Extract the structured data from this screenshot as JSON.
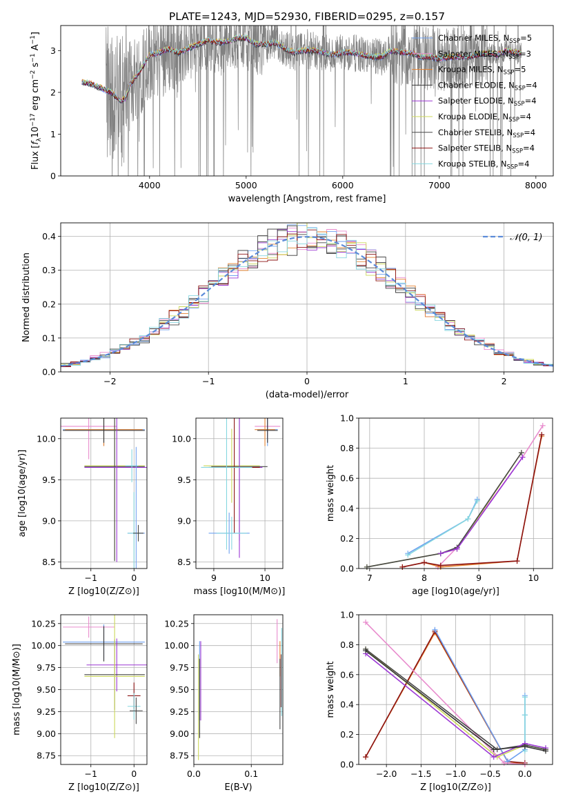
{
  "figure": {
    "title": "PLATE=1243, MJD=52930, FIBERID=0295, z=0.157"
  },
  "colors": {
    "series": [
      "#6fa1f0",
      "#e88bcd",
      "#e3812f",
      "#333333",
      "#9b37d4",
      "#ccd85a",
      "#464646",
      "#8b1212",
      "#85d6df"
    ],
    "data_spectrum": "#808080",
    "gaussian": "#5b8bd9",
    "grid": "#b0b0b0"
  },
  "chart_data": [
    {
      "id": "spectrum",
      "type": "line",
      "xlabel": "wavelength [Angstrom, rest frame]",
      "ylabel": "Flux [f_λ10^-17 erg cm^-2 s^-1 A^-1]",
      "xlim": [
        3080,
        8180
      ],
      "ylim": [
        0,
        3.6
      ],
      "xticks": [
        4000,
        5000,
        6000,
        7000,
        8000
      ],
      "yticks": [
        0,
        1,
        2,
        3
      ],
      "grid": false,
      "legend_position": "top-right",
      "legend": [
        "Chabrier MILES, N_SSP=5",
        "Salpeter MILES, N_SSP=3",
        "Kroupa MILES, N_SSP=5",
        "Chabrier ELODIE, N_SSP=4",
        "Salpeter ELODIE, N_SSP=4",
        "Kroupa ELODIE, N_SSP=4",
        "Chabrier STELIB, N_SSP=4",
        "Salpeter STELIB, N_SSP=4",
        "Kroupa STELIB, N_SSP=4"
      ],
      "continuum": {
        "x": [
          3300,
          3400,
          3500,
          3600,
          3700,
          3750,
          3800,
          3900,
          4000,
          4100,
          4200,
          4300,
          4400,
          4500,
          4600,
          4700,
          4800,
          4900,
          5000,
          5100,
          5200,
          5300,
          5400,
          5500,
          5600,
          5700,
          5800,
          5900,
          6000,
          6100,
          6200,
          6300,
          6400,
          6500,
          6600,
          6700,
          6800,
          6900,
          7000,
          7100,
          7200,
          7300,
          7400,
          7500,
          7600,
          7700,
          7800
        ],
        "y": [
          2.25,
          2.2,
          2.1,
          2.0,
          1.8,
          1.85,
          2.2,
          2.5,
          2.9,
          2.95,
          3.05,
          2.95,
          3.05,
          3.15,
          3.25,
          3.2,
          3.2,
          3.3,
          3.3,
          3.15,
          3.15,
          3.2,
          3.05,
          2.95,
          3.0,
          3.0,
          2.95,
          2.9,
          2.95,
          2.95,
          2.9,
          2.85,
          2.85,
          3.0,
          2.95,
          2.95,
          2.85,
          2.85,
          2.8,
          2.85,
          2.85,
          2.85,
          2.9,
          2.95,
          2.9,
          3.0,
          2.95
        ]
      },
      "data_xrange": [
        3300,
        7850
      ]
    },
    {
      "id": "residuals",
      "type": "bar",
      "xlabel": "(data-model)/error",
      "ylabel": "Normed distribution",
      "xlim": [
        -2.5,
        2.5
      ],
      "ylim": [
        0,
        0.44
      ],
      "xticks": [
        -2,
        -1,
        0,
        1,
        2
      ],
      "yticks": [
        0.0,
        0.1,
        0.2,
        0.3,
        0.4
      ],
      "grid": true,
      "legend": [
        "𝒩(0, 1)"
      ],
      "legend_position": "top-right",
      "bin_width": 0.1
    },
    {
      "id": "age-vs-Z",
      "type": "scatter",
      "xlabel": "Z [log10(Z/Z⊙)]",
      "ylabel": "age  [log10(age/yr)]",
      "xlim": [
        -1.7,
        0.3
      ],
      "ylim": [
        8.42,
        10.25
      ],
      "xticks": [
        -1,
        0
      ],
      "yticks": [
        8.5,
        9.0,
        9.5,
        10.0
      ],
      "grid": true,
      "points": [
        {
          "x": -1.05,
          "y": 10.15,
          "ex": 0.65,
          "ey": 0.4,
          "c": 1
        },
        {
          "x": -0.7,
          "y": 10.11,
          "ex": 0.95,
          "ey": 0.2,
          "c": 0
        },
        {
          "x": -0.7,
          "y": 10.11,
          "ex": 0.9,
          "ey": 0.2,
          "c": 2
        },
        {
          "x": -0.7,
          "y": 10.1,
          "ex": 0.95,
          "ey": 0.15,
          "c": 3
        },
        {
          "x": -0.45,
          "y": 9.67,
          "ex": 0.7,
          "ey": 1.15,
          "c": 5
        },
        {
          "x": -0.45,
          "y": 9.66,
          "ex": 0.7,
          "ey": 1.15,
          "c": 6
        },
        {
          "x": -0.4,
          "y": 9.65,
          "ex": 0.75,
          "ey": 1.15,
          "c": 4
        },
        {
          "x": -0.05,
          "y": 9.67,
          "ex": 0.15,
          "ey": 0.2,
          "c": 8
        },
        {
          "x": 0.05,
          "y": 8.85,
          "ex": 0.2,
          "ey": 1.05,
          "c": 0
        },
        {
          "x": 0.0,
          "y": 8.85,
          "ex": 0.15,
          "ey": 0.5,
          "c": 8
        },
        {
          "x": 0.1,
          "y": 8.85,
          "ex": 0.12,
          "ey": 0.1,
          "c": 6
        }
      ]
    },
    {
      "id": "age-vs-mass",
      "type": "scatter",
      "xlabel": "mass [log10(M/M⊙)]",
      "ylabel": "",
      "xlim": [
        8.65,
        10.35
      ],
      "ylim": [
        8.42,
        10.25
      ],
      "xticks": [
        9,
        10
      ],
      "yticks": [
        8.5,
        9.0,
        9.5,
        10.0
      ],
      "grid": true,
      "points": [
        {
          "x": 10.05,
          "y": 10.15,
          "ex": 0.25,
          "ey": 0.15,
          "c": 1
        },
        {
          "x": 10.05,
          "y": 10.11,
          "ex": 0.2,
          "ey": 0.2,
          "c": 0
        },
        {
          "x": 10.0,
          "y": 10.11,
          "ex": 0.2,
          "ey": 0.2,
          "c": 2
        },
        {
          "x": 10.05,
          "y": 10.1,
          "ex": 0.2,
          "ey": 0.15,
          "c": 3
        },
        {
          "x": 9.35,
          "y": 9.67,
          "ex": 0.55,
          "ey": 0.45,
          "c": 5
        },
        {
          "x": 9.5,
          "y": 9.66,
          "ex": 0.55,
          "ey": 0.9,
          "c": 6
        },
        {
          "x": 9.5,
          "y": 9.65,
          "ex": 0.45,
          "ey": 1.1,
          "c": 4
        },
        {
          "x": 9.4,
          "y": 9.65,
          "ex": 0.5,
          "ey": 0.8,
          "c": 7
        },
        {
          "x": 9.25,
          "y": 9.65,
          "ex": 0.5,
          "ey": 1.0,
          "c": 8
        },
        {
          "x": 9.3,
          "y": 8.85,
          "ex": 0.4,
          "ey": 0.25,
          "c": 0
        },
        {
          "x": 9.35,
          "y": 8.85,
          "ex": 0.3,
          "ey": 0.2,
          "c": 8
        }
      ]
    },
    {
      "id": "weight-vs-age",
      "type": "line",
      "xlabel": "age  [log10(age/yr)]",
      "ylabel": "mass weight",
      "xlim": [
        6.8,
        10.35
      ],
      "ylim": [
        0,
        1.0
      ],
      "xticks": [
        7,
        8,
        9,
        10
      ],
      "yticks": [
        0.0,
        0.2,
        0.4,
        0.6,
        0.8,
        1.0
      ],
      "grid": true,
      "series": [
        {
          "c": 0,
          "x": [
            7.7,
            8.8,
            8.97
          ],
          "y": [
            0.1,
            0.33,
            0.46
          ]
        },
        {
          "c": 8,
          "x": [
            7.7,
            8.8,
            8.97
          ],
          "y": [
            0.09,
            0.33,
            0.45
          ]
        },
        {
          "c": 1,
          "x": [
            8.25,
            8.6,
            9.8,
            10.17
          ],
          "y": [
            0.01,
            0.14,
            0.74,
            0.95
          ]
        },
        {
          "c": 5,
          "x": [
            6.95,
            8.3,
            8.6,
            9.78
          ],
          "y": [
            0.01,
            0.1,
            0.13,
            0.77
          ]
        },
        {
          "c": 6,
          "x": [
            6.95,
            8.3,
            8.6,
            9.78
          ],
          "y": [
            0.01,
            0.1,
            0.14,
            0.77
          ]
        },
        {
          "c": 4,
          "x": [
            8.3,
            8.6,
            9.8
          ],
          "y": [
            0.1,
            0.13,
            0.74
          ]
        },
        {
          "c": 2,
          "x": [
            7.6,
            8.0,
            8.3,
            9.7,
            10.15
          ],
          "y": [
            0.01,
            0.04,
            0.01,
            0.05,
            0.88
          ]
        },
        {
          "c": 7,
          "x": [
            7.6,
            8.0,
            8.3,
            9.7,
            10.15
          ],
          "y": [
            0.01,
            0.04,
            0.02,
            0.05,
            0.89
          ]
        }
      ]
    },
    {
      "id": "mass-vs-Z",
      "type": "scatter",
      "xlabel": "Z [log10(Z/Z⊙)]",
      "ylabel": "mass [log10(M/M⊙)]",
      "xlim": [
        -1.7,
        0.3
      ],
      "ylim": [
        8.65,
        10.35
      ],
      "xticks": [
        -1,
        0
      ],
      "yticks": [
        8.75,
        9.0,
        9.25,
        9.5,
        9.75,
        10.0,
        10.25
      ],
      "grid": true,
      "points": [
        {
          "x": -1.05,
          "y": 10.21,
          "ex": 0.6,
          "ey": 0.12,
          "c": 1
        },
        {
          "x": -0.7,
          "y": 10.04,
          "ex": 0.95,
          "ey": 0.2,
          "c": 0
        },
        {
          "x": -0.7,
          "y": 10.02,
          "ex": 0.9,
          "ey": 0.2,
          "c": 3
        },
        {
          "x": -0.4,
          "y": 9.78,
          "ex": 0.7,
          "ey": 0.3,
          "c": 4
        },
        {
          "x": -0.45,
          "y": 9.67,
          "ex": 0.7,
          "ey": 0.4,
          "c": 6
        },
        {
          "x": -0.45,
          "y": 9.65,
          "ex": 0.7,
          "ey": 0.7,
          "c": 5
        },
        {
          "x": 0.0,
          "y": 9.43,
          "ex": 0.15,
          "ey": 0.15,
          "c": 7
        },
        {
          "x": 0.0,
          "y": 9.31,
          "ex": 0.15,
          "ey": 0.15,
          "c": 8
        },
        {
          "x": 0.05,
          "y": 9.26,
          "ex": 0.15,
          "ey": 0.15,
          "c": 6
        }
      ]
    },
    {
      "id": "mass-vs-EBV",
      "type": "scatter",
      "xlabel": "E(B-V)",
      "ylabel": "",
      "xlim": [
        0.0,
        0.155
      ],
      "ylim": [
        8.65,
        10.35
      ],
      "xticks": [
        0.0,
        0.1
      ],
      "yticks": [
        8.75,
        9.0,
        9.25,
        9.5,
        9.75,
        10.0,
        10.25
      ],
      "grid": true,
      "points": [
        {
          "x": 0.01,
          "y": 9.6,
          "ex": 0,
          "ey": 0.45,
          "c": 0
        },
        {
          "x": 0.012,
          "y": 9.6,
          "ex": 0,
          "ey": 0.45,
          "c": 4
        },
        {
          "x": 0.008,
          "y": 9.3,
          "ex": 0,
          "ey": 0.6,
          "c": 5
        },
        {
          "x": 0.01,
          "y": 9.4,
          "ex": 0,
          "ey": 0.45,
          "c": 3
        },
        {
          "x": 0.145,
          "y": 10.05,
          "ex": 0,
          "ey": 0.25,
          "c": 1
        },
        {
          "x": 0.15,
          "y": 9.85,
          "ex": 0,
          "ey": 0.2,
          "c": 2
        },
        {
          "x": 0.15,
          "y": 9.45,
          "ex": 0,
          "ey": 0.4,
          "c": 6
        },
        {
          "x": 0.152,
          "y": 9.6,
          "ex": 0,
          "ey": 0.3,
          "c": 7
        },
        {
          "x": 0.153,
          "y": 9.7,
          "ex": 0,
          "ey": 0.5,
          "c": 8
        }
      ]
    },
    {
      "id": "weight-vs-Z",
      "type": "line",
      "xlabel": "Z [log10(Z/Z⊙)]",
      "ylabel": "mass weight",
      "xlim": [
        -2.4,
        0.4
      ],
      "ylim": [
        0,
        1.0
      ],
      "xticks": [
        -2.0,
        -1.5,
        -1.0,
        -0.5,
        0.0
      ],
      "yticks": [
        0.0,
        0.2,
        0.4,
        0.6,
        0.8,
        1.0
      ],
      "grid": true,
      "series": [
        {
          "c": 2,
          "x": [
            -2.3,
            -1.3,
            -0.25,
            0.0
          ],
          "y": [
            0.05,
            0.88,
            0.02,
            0.0
          ]
        },
        {
          "c": 7,
          "x": [
            -2.3,
            -1.3,
            -0.25,
            0.0
          ],
          "y": [
            0.05,
            0.89,
            0.02,
            0.01
          ]
        },
        {
          "c": 0,
          "x": [
            -1.3,
            -0.25,
            0.0,
            0.0,
            0.0
          ],
          "y": [
            0.9,
            0.02,
            0.1,
            0.33,
            0.46
          ]
        },
        {
          "c": 8,
          "x": [
            0.0,
            0.0,
            0.0
          ],
          "y": [
            0.09,
            0.33,
            0.45
          ]
        },
        {
          "c": 1,
          "x": [
            -2.3,
            -0.3,
            0.0
          ],
          "y": [
            0.95,
            0.01,
            0.0
          ]
        },
        {
          "c": 5,
          "x": [
            -2.3,
            -0.4,
            0.0,
            0.3
          ],
          "y": [
            0.77,
            0.05,
            0.13,
            0.1
          ]
        },
        {
          "c": 6,
          "x": [
            -2.3,
            -0.4,
            0.0,
            0.3
          ],
          "y": [
            0.77,
            0.1,
            0.13,
            0.1
          ]
        },
        {
          "c": 4,
          "x": [
            -2.3,
            -0.45,
            0.0,
            0.3
          ],
          "y": [
            0.74,
            0.05,
            0.14,
            0.11
          ]
        },
        {
          "c": 3,
          "x": [
            -2.3,
            -0.45,
            0.0,
            0.3
          ],
          "y": [
            0.76,
            0.1,
            0.12,
            0.09
          ]
        }
      ]
    }
  ]
}
